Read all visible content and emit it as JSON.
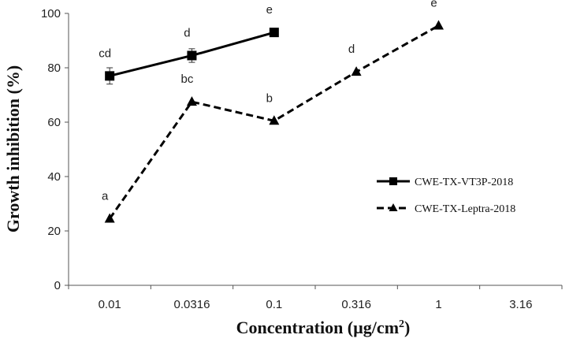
{
  "chart_data": {
    "type": "line",
    "title": "",
    "xlabel": "Concentration (µg/cm",
    "xlabel_sup": "2",
    "xlabel_close": ")",
    "ylabel": "Growth inhibition (%)",
    "x_tick_labels": [
      "0.01",
      "0.0316",
      "0.1",
      "0.316",
      "1",
      "3.16"
    ],
    "y_ticks": [
      0,
      20,
      40,
      60,
      80,
      100
    ],
    "ylim": [
      0,
      100
    ],
    "x_scale": "log",
    "grid": false,
    "legend_position": "right",
    "series": [
      {
        "name": "CWE-TX-VT3P-2018",
        "line_style": "solid",
        "marker": "square",
        "color": "#000000",
        "x": [
          0.01,
          0.0316,
          0.1
        ],
        "y": [
          77,
          84.5,
          93
        ],
        "error": [
          3,
          2.5,
          1
        ],
        "labels": [
          "cd",
          "d",
          "e"
        ]
      },
      {
        "name": "CWE-TX-Leptra-2018",
        "line_style": "dashed",
        "marker": "triangle",
        "color": "#000000",
        "x": [
          0.01,
          0.0316,
          0.1,
          0.316,
          1
        ],
        "y": [
          24.5,
          67.5,
          60.5,
          78.5,
          95.5
        ],
        "error": [
          0,
          0,
          0,
          0,
          0
        ],
        "labels": [
          "a",
          "bc",
          "b",
          "d",
          "e"
        ]
      }
    ]
  }
}
